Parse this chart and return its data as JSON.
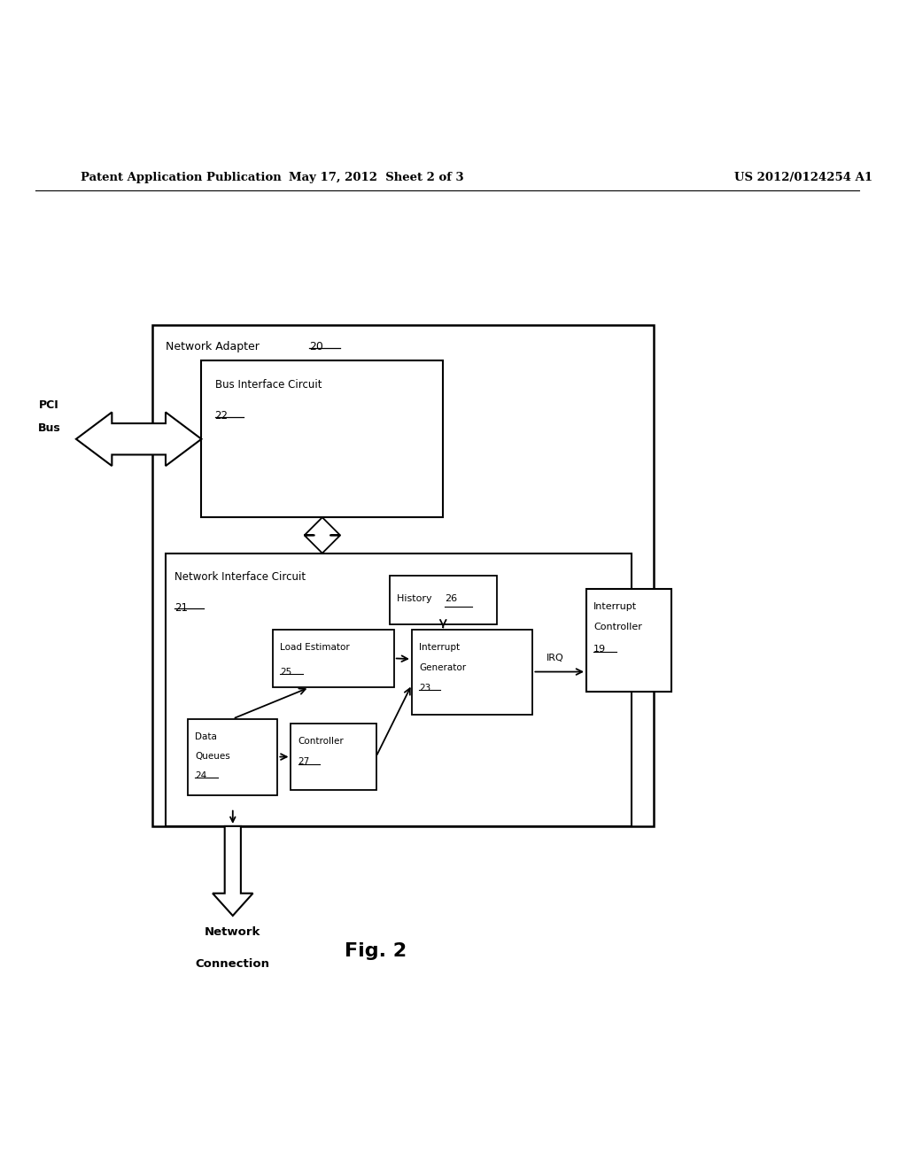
{
  "bg_color": "#ffffff",
  "header_left": "Patent Application Publication",
  "header_center": "May 17, 2012  Sheet 2 of 3",
  "header_right": "US 2012/0124254 A1",
  "fig_label": "Fig. 2",
  "text_color": "#000000",
  "line_color": "#000000"
}
